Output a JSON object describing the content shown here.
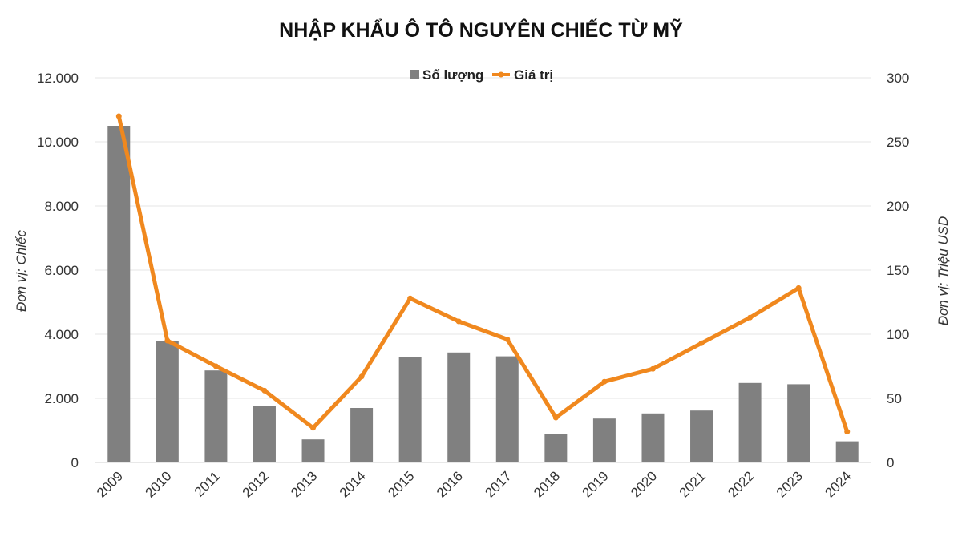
{
  "chart_data": {
    "type": "bar",
    "title": "NHẬP KHẨU Ô TÔ NGUYÊN CHIẾC TỪ MỸ",
    "categories": [
      "2009",
      "2010",
      "2011",
      "2012",
      "2013",
      "2014",
      "2015",
      "2016",
      "2017",
      "2018",
      "2019",
      "2020",
      "2021",
      "2022",
      "2023",
      "2024"
    ],
    "series": [
      {
        "name": "Số lượng",
        "type": "bar",
        "axis": "left",
        "color": "#808080",
        "values": [
          10500,
          3800,
          2870,
          1750,
          720,
          1700,
          3300,
          3430,
          3310,
          900,
          1370,
          1530,
          1620,
          2480,
          2440,
          660
        ]
      },
      {
        "name": "Giá trị",
        "type": "line",
        "axis": "right",
        "color": "#F0881E",
        "values": [
          270,
          95,
          75,
          56,
          27,
          67,
          128,
          110,
          96,
          35,
          63,
          73,
          93,
          113,
          136,
          24
        ]
      }
    ],
    "y_left": {
      "label": "Đơn vị: Chiếc",
      "ylim": [
        0,
        12000
      ],
      "ticks": [
        0,
        2000,
        4000,
        6000,
        8000,
        10000,
        12000
      ],
      "tick_labels": [
        "0",
        "2.000",
        "4.000",
        "6.000",
        "8.000",
        "10.000",
        "12.000"
      ]
    },
    "y_right": {
      "label": "Đơn vị: Triệu USD",
      "ylim": [
        0,
        300
      ],
      "ticks": [
        0,
        50,
        100,
        150,
        200,
        250,
        300
      ],
      "tick_labels": [
        "0",
        "50",
        "100",
        "150",
        "200",
        "250",
        "300"
      ]
    },
    "grid": true,
    "legend_position": "top-center"
  }
}
